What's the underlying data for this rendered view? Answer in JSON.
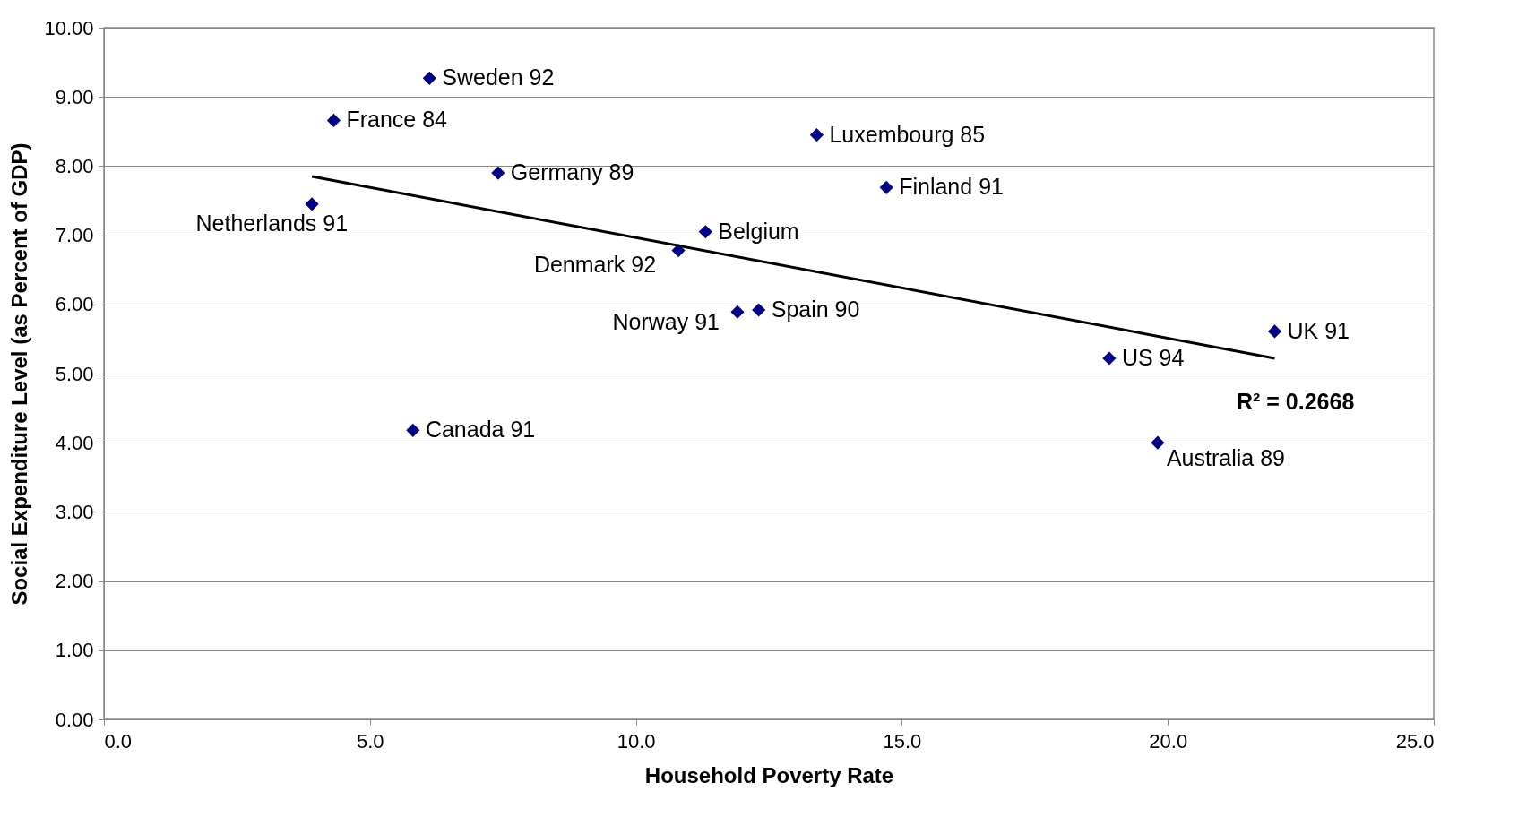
{
  "chart_data": {
    "type": "scatter",
    "xlabel": "Household Poverty Rate",
    "ylabel": "Social Expenditure Level (as Percent of GDP)",
    "series": [
      {
        "color": "#000080",
        "marker": "diamond",
        "x": [
          6.12,
          4.32,
          13.4,
          7.41,
          14.71,
          3.91,
          11.31,
          10.8,
          11.91,
          12.31,
          22.01,
          18.9,
          5.81,
          19.81
        ],
        "values": [
          9.27,
          8.66,
          8.45,
          7.9,
          7.69,
          7.45,
          7.05,
          6.78,
          5.89,
          5.92,
          5.61,
          5.22,
          4.18,
          4.0
        ],
        "value_labels": [
          "Sweden 92",
          "France 84",
          "Luxembourg 85",
          "Germany 89",
          "Finland 91",
          "Netherlands 91",
          "Belgium",
          "Denmark 92",
          "Norway 91",
          "Spain 90",
          "UK 91",
          "US 94",
          "Canada 91",
          "Australia 89"
        ]
      },
      {
        "type": "line",
        "color": "#000000",
        "x": [
          3.91,
          22.01
        ],
        "values": [
          7.85,
          5.22
        ]
      }
    ],
    "annotations": [
      "R² = 0.2668"
    ],
    "xlim": [
      0,
      25
    ],
    "xticks": [
      {
        "value": 0,
        "label": "0.0"
      },
      {
        "value": 5,
        "label": "5.0"
      },
      {
        "value": 10,
        "label": "10.0"
      },
      {
        "value": 15,
        "label": "15.0"
      },
      {
        "value": 20,
        "label": "20.0"
      },
      {
        "value": 25,
        "label": "25.0"
      }
    ],
    "ylim": [
      0,
      10
    ],
    "yticks": [
      {
        "value": 0,
        "label": "0.00"
      },
      {
        "value": 1,
        "label": "1.00"
      },
      {
        "value": 2,
        "label": "2.00"
      },
      {
        "value": 3,
        "label": "3.00"
      },
      {
        "value": 4,
        "label": "4.00"
      },
      {
        "value": 5,
        "label": "5.00"
      },
      {
        "value": 6,
        "label": "6.00"
      },
      {
        "value": 7,
        "label": "7.00"
      },
      {
        "value": 8,
        "label": "8.00"
      },
      {
        "value": 9,
        "label": "9.00"
      },
      {
        "value": 10,
        "label": "10.00"
      }
    ],
    "grid": "y"
  }
}
